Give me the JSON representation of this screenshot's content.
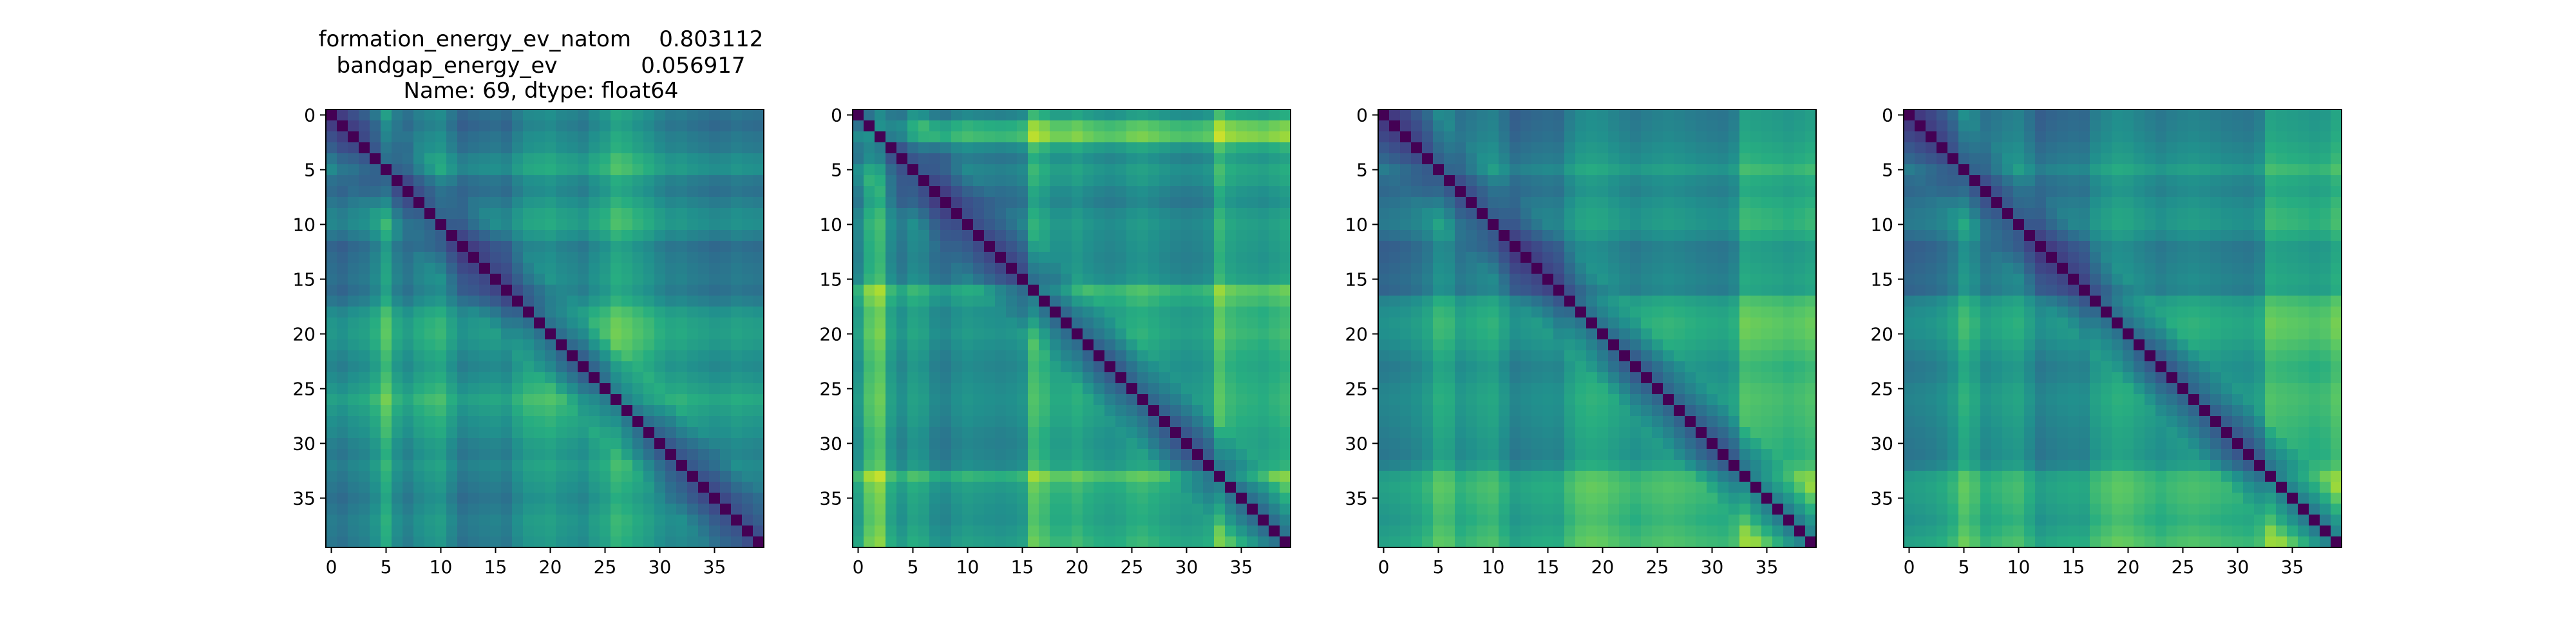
{
  "chart_data": {
    "type": "heatmap",
    "title_lines": [
      "formation_energy_ev_natom    0.803112",
      "bandgap_energy_ev            0.056917",
      "Name: 69, dtype: float64"
    ],
    "colormap": {
      "name": "viridis",
      "stops": [
        "#440154",
        "#472c7a",
        "#3b518b",
        "#2c718e",
        "#21908d",
        "#27ad81",
        "#5cc863",
        "#aadc32",
        "#fde725"
      ],
      "vmin": 0,
      "vmax": 1
    },
    "grid": false,
    "matrix_size": 40,
    "panels": [
      {
        "panel": 1,
        "x_tick_labels": [
          "0",
          "5",
          "10",
          "15",
          "20",
          "25",
          "30",
          "35"
        ],
        "y_tick_labels": [
          "0",
          "5",
          "10",
          "15",
          "20",
          "25",
          "30",
          "35"
        ],
        "row_levels": [
          0.35,
          0.3,
          0.38,
          0.42,
          0.55,
          0.6,
          0.4,
          0.35,
          0.45,
          0.55,
          0.58,
          0.45,
          0.3,
          0.35,
          0.38,
          0.4,
          0.35,
          0.45,
          0.62,
          0.7,
          0.72,
          0.68,
          0.6,
          0.55,
          0.62,
          0.7,
          0.8,
          0.72,
          0.65,
          0.6,
          0.52,
          0.48,
          0.55,
          0.5,
          0.45,
          0.4,
          0.45,
          0.5,
          0.48,
          0.45
        ],
        "col_levels": [
          0.35,
          0.3,
          0.38,
          0.42,
          0.55,
          0.78,
          0.5,
          0.4,
          0.52,
          0.58,
          0.62,
          0.45,
          0.3,
          0.35,
          0.38,
          0.4,
          0.35,
          0.5,
          0.6,
          0.62,
          0.65,
          0.58,
          0.55,
          0.5,
          0.62,
          0.7,
          0.85,
          0.8,
          0.72,
          0.65,
          0.55,
          0.48,
          0.5,
          0.45,
          0.42,
          0.38,
          0.4,
          0.45,
          0.42,
          0.4
        ]
      },
      {
        "panel": 2,
        "x_tick_labels": [
          "0",
          "5",
          "10",
          "15",
          "20",
          "25",
          "30",
          "35"
        ],
        "y_tick_labels": [
          "0",
          "5",
          "10",
          "15",
          "20",
          "25",
          "30",
          "35"
        ],
        "row_levels": [
          0.5,
          0.85,
          0.95,
          0.55,
          0.4,
          0.5,
          0.45,
          0.35,
          0.3,
          0.4,
          0.45,
          0.42,
          0.4,
          0.38,
          0.4,
          0.45,
          0.8,
          0.7,
          0.6,
          0.62,
          0.65,
          0.6,
          0.55,
          0.52,
          0.55,
          0.58,
          0.6,
          0.58,
          0.55,
          0.5,
          0.48,
          0.5,
          0.55,
          0.88,
          0.7,
          0.65,
          0.62,
          0.6,
          0.65,
          0.7
        ],
        "col_levels": [
          0.5,
          0.85,
          0.95,
          0.55,
          0.4,
          0.55,
          0.5,
          0.35,
          0.3,
          0.4,
          0.45,
          0.42,
          0.4,
          0.38,
          0.4,
          0.45,
          0.85,
          0.75,
          0.62,
          0.62,
          0.68,
          0.6,
          0.55,
          0.52,
          0.55,
          0.62,
          0.65,
          0.6,
          0.55,
          0.5,
          0.48,
          0.5,
          0.55,
          0.9,
          0.75,
          0.7,
          0.68,
          0.65,
          0.7,
          0.75
        ]
      },
      {
        "panel": 3,
        "x_tick_labels": [
          "0",
          "5",
          "10",
          "15",
          "20",
          "25",
          "30",
          "35"
        ],
        "y_tick_labels": [
          "0",
          "5",
          "10",
          "15",
          "20",
          "25",
          "30",
          "35"
        ],
        "row_levels": [
          0.3,
          0.32,
          0.35,
          0.4,
          0.45,
          0.55,
          0.42,
          0.38,
          0.45,
          0.5,
          0.52,
          0.42,
          0.3,
          0.32,
          0.35,
          0.38,
          0.35,
          0.6,
          0.68,
          0.72,
          0.7,
          0.65,
          0.58,
          0.52,
          0.55,
          0.6,
          0.62,
          0.6,
          0.58,
          0.55,
          0.52,
          0.5,
          0.58,
          0.8,
          0.85,
          0.82,
          0.78,
          0.75,
          0.8,
          0.85
        ],
        "col_levels": [
          0.3,
          0.32,
          0.35,
          0.4,
          0.48,
          0.65,
          0.62,
          0.45,
          0.5,
          0.55,
          0.58,
          0.45,
          0.3,
          0.35,
          0.38,
          0.4,
          0.38,
          0.55,
          0.65,
          0.68,
          0.66,
          0.6,
          0.55,
          0.5,
          0.55,
          0.58,
          0.6,
          0.58,
          0.55,
          0.52,
          0.5,
          0.48,
          0.55,
          0.85,
          0.82,
          0.8,
          0.78,
          0.75,
          0.78,
          0.82
        ]
      },
      {
        "panel": 4,
        "x_tick_labels": [
          "0",
          "5",
          "10",
          "15",
          "20",
          "25",
          "30",
          "35"
        ],
        "y_tick_labels": [
          "0",
          "5",
          "10",
          "15",
          "20",
          "25",
          "30",
          "35"
        ],
        "row_levels": [
          0.3,
          0.32,
          0.35,
          0.4,
          0.45,
          0.55,
          0.42,
          0.38,
          0.45,
          0.5,
          0.52,
          0.42,
          0.3,
          0.32,
          0.35,
          0.38,
          0.35,
          0.58,
          0.66,
          0.7,
          0.68,
          0.62,
          0.55,
          0.5,
          0.52,
          0.58,
          0.6,
          0.58,
          0.55,
          0.52,
          0.5,
          0.48,
          0.55,
          0.78,
          0.82,
          0.8,
          0.76,
          0.72,
          0.78,
          0.85
        ],
        "col_levels": [
          0.3,
          0.32,
          0.35,
          0.4,
          0.5,
          0.7,
          0.6,
          0.45,
          0.5,
          0.55,
          0.58,
          0.45,
          0.3,
          0.35,
          0.38,
          0.4,
          0.38,
          0.55,
          0.62,
          0.68,
          0.66,
          0.6,
          0.55,
          0.5,
          0.55,
          0.58,
          0.6,
          0.58,
          0.55,
          0.52,
          0.5,
          0.48,
          0.55,
          0.85,
          0.82,
          0.8,
          0.78,
          0.75,
          0.78,
          0.88
        ]
      }
    ]
  }
}
